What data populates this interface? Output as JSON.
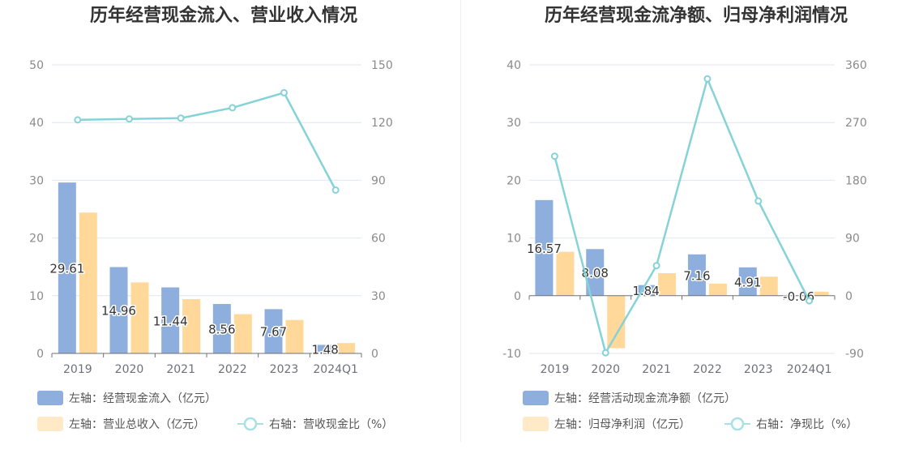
{
  "chart_data": [
    {
      "type": "bar",
      "title": "历年经营现金流入、营业收入情况",
      "categories": [
        "2019",
        "2020",
        "2021",
        "2022",
        "2023",
        "2024Q1"
      ],
      "left_axis": {
        "ylim": [
          0,
          50
        ],
        "ticks": [
          "0",
          "10",
          "20",
          "30",
          "40",
          "50"
        ]
      },
      "right_axis": {
        "ylim": [
          0,
          150
        ],
        "ticks": [
          "0",
          "30",
          "60",
          "90",
          "120",
          "150"
        ]
      },
      "series": [
        {
          "name": "左轴：经营现金流入（亿元）",
          "type": "bar",
          "axis": "left",
          "color": "#8eaedd",
          "values": [
            29.61,
            14.96,
            11.44,
            8.56,
            7.67,
            1.48
          ],
          "labels": [
            "29.61",
            "14.96",
            "11.44",
            "8.56",
            "7.67",
            "1.48"
          ]
        },
        {
          "name": "左轴：营业总收入（亿元）",
          "type": "bar",
          "axis": "left",
          "color": "#ffd89a",
          "values": [
            24.4,
            12.3,
            9.4,
            6.8,
            5.8,
            1.8
          ]
        },
        {
          "name": "右轴：营收现金比（%）",
          "type": "line",
          "axis": "right",
          "color": "#85d3d8",
          "values": [
            121.4,
            121.9,
            122.3,
            127.7,
            135.5,
            84.9
          ]
        }
      ],
      "grid": true,
      "legend_position": "bottom"
    },
    {
      "type": "bar",
      "title": "历年经营现金流净额、归母净利润情况",
      "categories": [
        "2019",
        "2020",
        "2021",
        "2022",
        "2023",
        "2024Q1"
      ],
      "left_axis": {
        "ylim": [
          -10,
          40
        ],
        "ticks": [
          "-10",
          "0",
          "10",
          "20",
          "30",
          "40"
        ]
      },
      "right_axis": {
        "ylim": [
          -90,
          360
        ],
        "ticks": [
          "-90",
          "0",
          "90",
          "180",
          "270",
          "360"
        ]
      },
      "series": [
        {
          "name": "左轴：经营活动现金流净额（亿元）",
          "type": "bar",
          "axis": "left",
          "color": "#8eaedd",
          "values": [
            16.57,
            8.08,
            1.84,
            7.16,
            4.91,
            -0.06
          ],
          "labels": [
            "16.57",
            "8.08",
            "1.84",
            "7.16",
            "4.91",
            "-0.06"
          ]
        },
        {
          "name": "左轴：归母净利润（亿元）",
          "type": "bar",
          "axis": "left",
          "color": "#ffd89a",
          "values": [
            7.6,
            -9.1,
            3.9,
            2.1,
            3.3,
            0.7
          ]
        },
        {
          "name": "右轴：净现比（%）",
          "type": "line",
          "axis": "right",
          "color": "#85d3d8",
          "values": [
            217.5,
            -89.0,
            46.9,
            338.2,
            147.6,
            -8.0
          ]
        }
      ],
      "grid": true,
      "legend_position": "bottom"
    }
  ]
}
